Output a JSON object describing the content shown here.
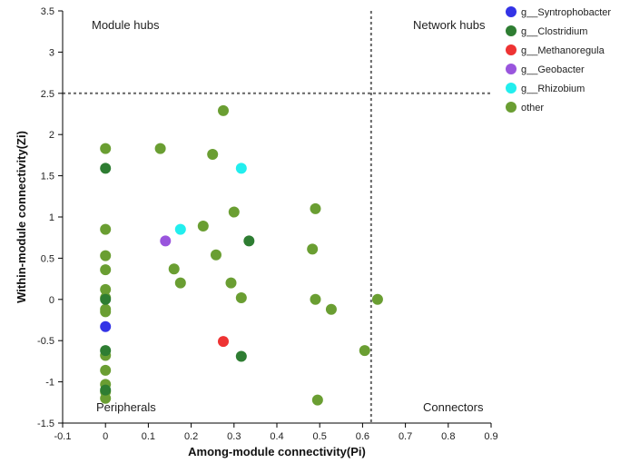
{
  "chart_data": {
    "type": "scatter",
    "title": "",
    "xlabel": "Among-module connectivity(Pi)",
    "ylabel": "Within-module connectivity(Zi)",
    "xlim": [
      -0.1,
      0.9
    ],
    "ylim": [
      -1.5,
      3.5
    ],
    "xticks": [
      -0.1,
      0,
      0.1,
      0.2,
      0.3,
      0.4,
      0.5,
      0.6,
      0.7,
      0.8,
      0.9
    ],
    "yticks": [
      -1.5,
      -1,
      -0.5,
      0,
      0.5,
      1,
      1.5,
      2,
      2.5,
      3,
      3.5
    ],
    "xtick_labels": [
      "-0.1",
      "0",
      "0.1",
      "0.2",
      "0.3",
      "0.4",
      "0.5",
      "0.6",
      "0.7",
      "0.8",
      "0.9"
    ],
    "ytick_labels": [
      "-1.5",
      "-1",
      "-0.5",
      "0",
      "0.5",
      "1",
      "1.5",
      "2",
      "2.5",
      "3",
      "3.5"
    ],
    "thresholds": {
      "pi": 0.62,
      "zi": 2.5
    },
    "quadrant_labels": {
      "top_left": "Module hubs",
      "top_right": "Network hubs",
      "bottom_left": "Peripherals",
      "bottom_right": "Connectors"
    },
    "legend_position": "right",
    "series": [
      {
        "name": "g__Syntrophobacter",
        "color": "#3333e6",
        "points": [
          [
            0,
            -0.33
          ]
        ]
      },
      {
        "name": "g__Clostridium",
        "color": "#2e7d32",
        "points": [
          [
            0,
            1.59
          ],
          [
            0,
            0.0
          ],
          [
            0,
            -0.62
          ],
          [
            0.335,
            0.71
          ],
          [
            0.317,
            -0.69
          ],
          [
            0,
            -1.1
          ]
        ]
      },
      {
        "name": "g__Methanoregula",
        "color": "#ee3333",
        "points": [
          [
            0.275,
            -0.51
          ]
        ]
      },
      {
        "name": "g__Geobacter",
        "color": "#9955dd",
        "points": [
          [
            0.14,
            0.71
          ]
        ]
      },
      {
        "name": "g__Rhizobium",
        "color": "#22eeee",
        "points": [
          [
            0.175,
            0.85
          ],
          [
            0.317,
            1.59
          ]
        ]
      },
      {
        "name": "other",
        "color": "#6a9e32",
        "points": [
          [
            0,
            1.83
          ],
          [
            0,
            0.85
          ],
          [
            0,
            0.53
          ],
          [
            0,
            0.36
          ],
          [
            0,
            0.12
          ],
          [
            0,
            0.02
          ],
          [
            0,
            -0.12
          ],
          [
            0,
            -0.15
          ],
          [
            0,
            -0.68
          ],
          [
            0,
            -0.86
          ],
          [
            0,
            -1.03
          ],
          [
            0,
            -1.12
          ],
          [
            0,
            -1.2
          ],
          [
            0.275,
            2.29
          ],
          [
            0.128,
            1.83
          ],
          [
            0.25,
            1.76
          ],
          [
            0.228,
            0.89
          ],
          [
            0.3,
            1.06
          ],
          [
            0.49,
            1.1
          ],
          [
            0.483,
            0.61
          ],
          [
            0.258,
            0.54
          ],
          [
            0.16,
            0.37
          ],
          [
            0.175,
            0.2
          ],
          [
            0.293,
            0.2
          ],
          [
            0.317,
            0.02
          ],
          [
            0.49,
            0.0
          ],
          [
            0.527,
            -0.12
          ],
          [
            0.635,
            0.0
          ],
          [
            0.605,
            -0.62
          ],
          [
            0.495,
            -1.22
          ]
        ]
      }
    ]
  }
}
